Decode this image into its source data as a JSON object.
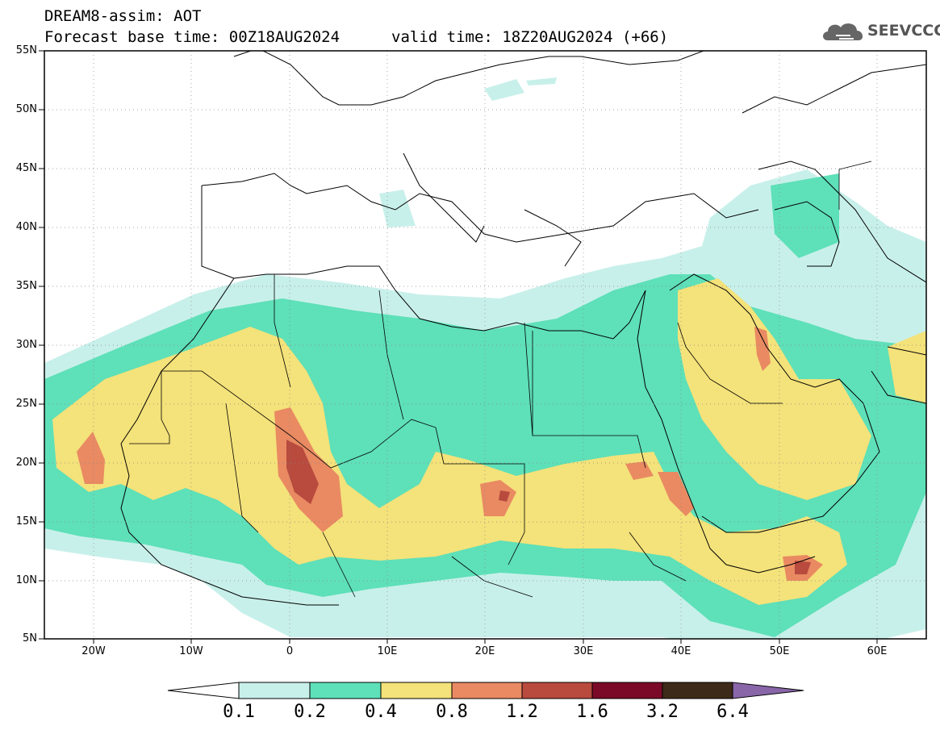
{
  "header": {
    "line1": "DREAM8-assim: AOT",
    "line2": "Forecast base time: 00Z18AUG2024",
    "valid": "valid time: 18Z20AUG2024 (+66)"
  },
  "logo": {
    "text": "SEEVCCC",
    "icon": "cloud-icon"
  },
  "map": {
    "lon_range": [
      -25,
      65
    ],
    "lat_range": [
      5,
      55
    ],
    "lat_labels": [
      "55N",
      "50N",
      "45N",
      "40N",
      "35N",
      "30N",
      "25N",
      "20N",
      "15N",
      "10N",
      "5N"
    ],
    "lon_labels": [
      "20W",
      "10W",
      "0",
      "10E",
      "20E",
      "30E",
      "40E",
      "50E",
      "60E"
    ],
    "grid": "dotted"
  },
  "colorbar": {
    "levels": [
      "0.1",
      "0.2",
      "0.4",
      "0.8",
      "1.2",
      "1.6",
      "3.2",
      "6.4"
    ],
    "colors": [
      "#c8f0ea",
      "#5ee0b8",
      "#f4e27a",
      "#e98a62",
      "#b84a3e",
      "#7a0a28",
      "#3e2a18",
      "#8866a8"
    ],
    "under_color": "#ffffff"
  }
}
